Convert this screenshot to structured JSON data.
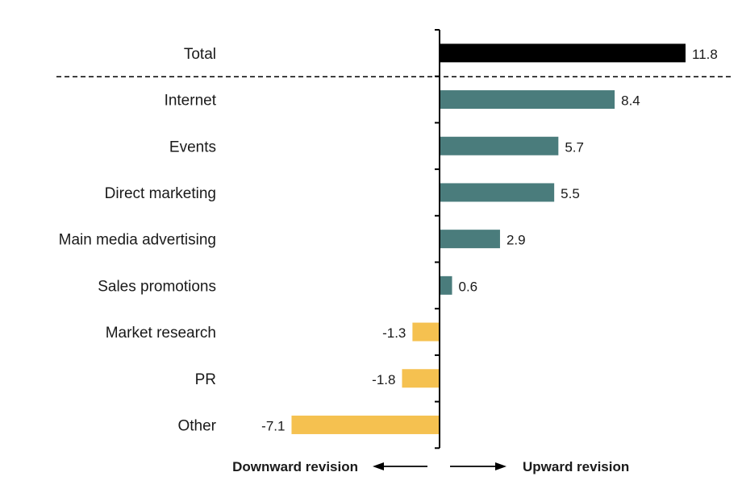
{
  "chart_data": {
    "type": "bar",
    "orientation": "horizontal",
    "categories": [
      "Total",
      "Internet",
      "Events",
      "Direct marketing",
      "Main media advertising",
      "Sales promotions",
      "Market research",
      "PR",
      "Other"
    ],
    "values": [
      11.8,
      8.4,
      5.7,
      5.5,
      2.9,
      0.6,
      -1.3,
      -1.8,
      -7.1
    ],
    "data_labels": [
      "11.8",
      "8.4",
      "5.7",
      "5.5",
      "2.9",
      "0.6",
      "-1.3",
      "-1.8",
      "-7.1"
    ],
    "title": "",
    "xlabel": "",
    "ylabel": "",
    "xlim": [
      -7.1,
      11.8
    ],
    "grid": false,
    "legend": "none",
    "separator_after_category": "Total",
    "colors": {
      "total": "#000000",
      "positive": "#4a7c7c",
      "negative": "#f5c150",
      "axis": "#000000",
      "text": "#1a1a1a"
    },
    "direction_labels": {
      "left": "Downward revision",
      "right": "Upward revision"
    }
  }
}
